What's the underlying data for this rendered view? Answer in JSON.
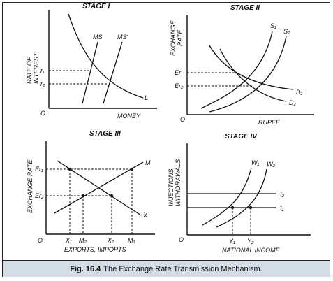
{
  "panels": {
    "stage1": {
      "title": "STAGE I",
      "y_axis": [
        "RATE OF",
        "INTEREST"
      ],
      "x_axis": "MONEY",
      "origin": "O",
      "curves": [
        "MS",
        "MS′",
        "L"
      ],
      "ticks": [
        "r₁",
        "r₂"
      ]
    },
    "stage2": {
      "title": "STAGE II",
      "y_axis": [
        "EXCHANGE",
        "RATE"
      ],
      "x_axis": "RUPEE",
      "origin": "O",
      "curves": [
        "S₁",
        "S₂",
        "D₁",
        "D₂"
      ],
      "ticks": [
        "Er₁",
        "Er₂"
      ]
    },
    "stage3": {
      "title": "STAGE III",
      "y_axis": [
        "EXCHANGE RATE"
      ],
      "x_axis": "EXPORTS, IMPORTS",
      "origin": "O",
      "curves": [
        "M",
        "X"
      ],
      "ticks_y": [
        "Er₁",
        "Er₂"
      ],
      "ticks_x": [
        "X₁",
        "M₂",
        "X₂",
        "M₁"
      ]
    },
    "stage4": {
      "title": "STAGE IV",
      "y_axis": [
        "INJECTIONS,",
        "WITHDRAWALS"
      ],
      "x_axis": "NATIONAL INCOME",
      "origin": "O",
      "curves": [
        "W₁",
        "W₂",
        "J₂",
        "J₁"
      ],
      "ticks_x": [
        "Y₁",
        "Y₂"
      ]
    }
  },
  "caption": {
    "fig": "Fig. 16.4",
    "text": "The Exchange Rate Transmission Mechanism."
  }
}
